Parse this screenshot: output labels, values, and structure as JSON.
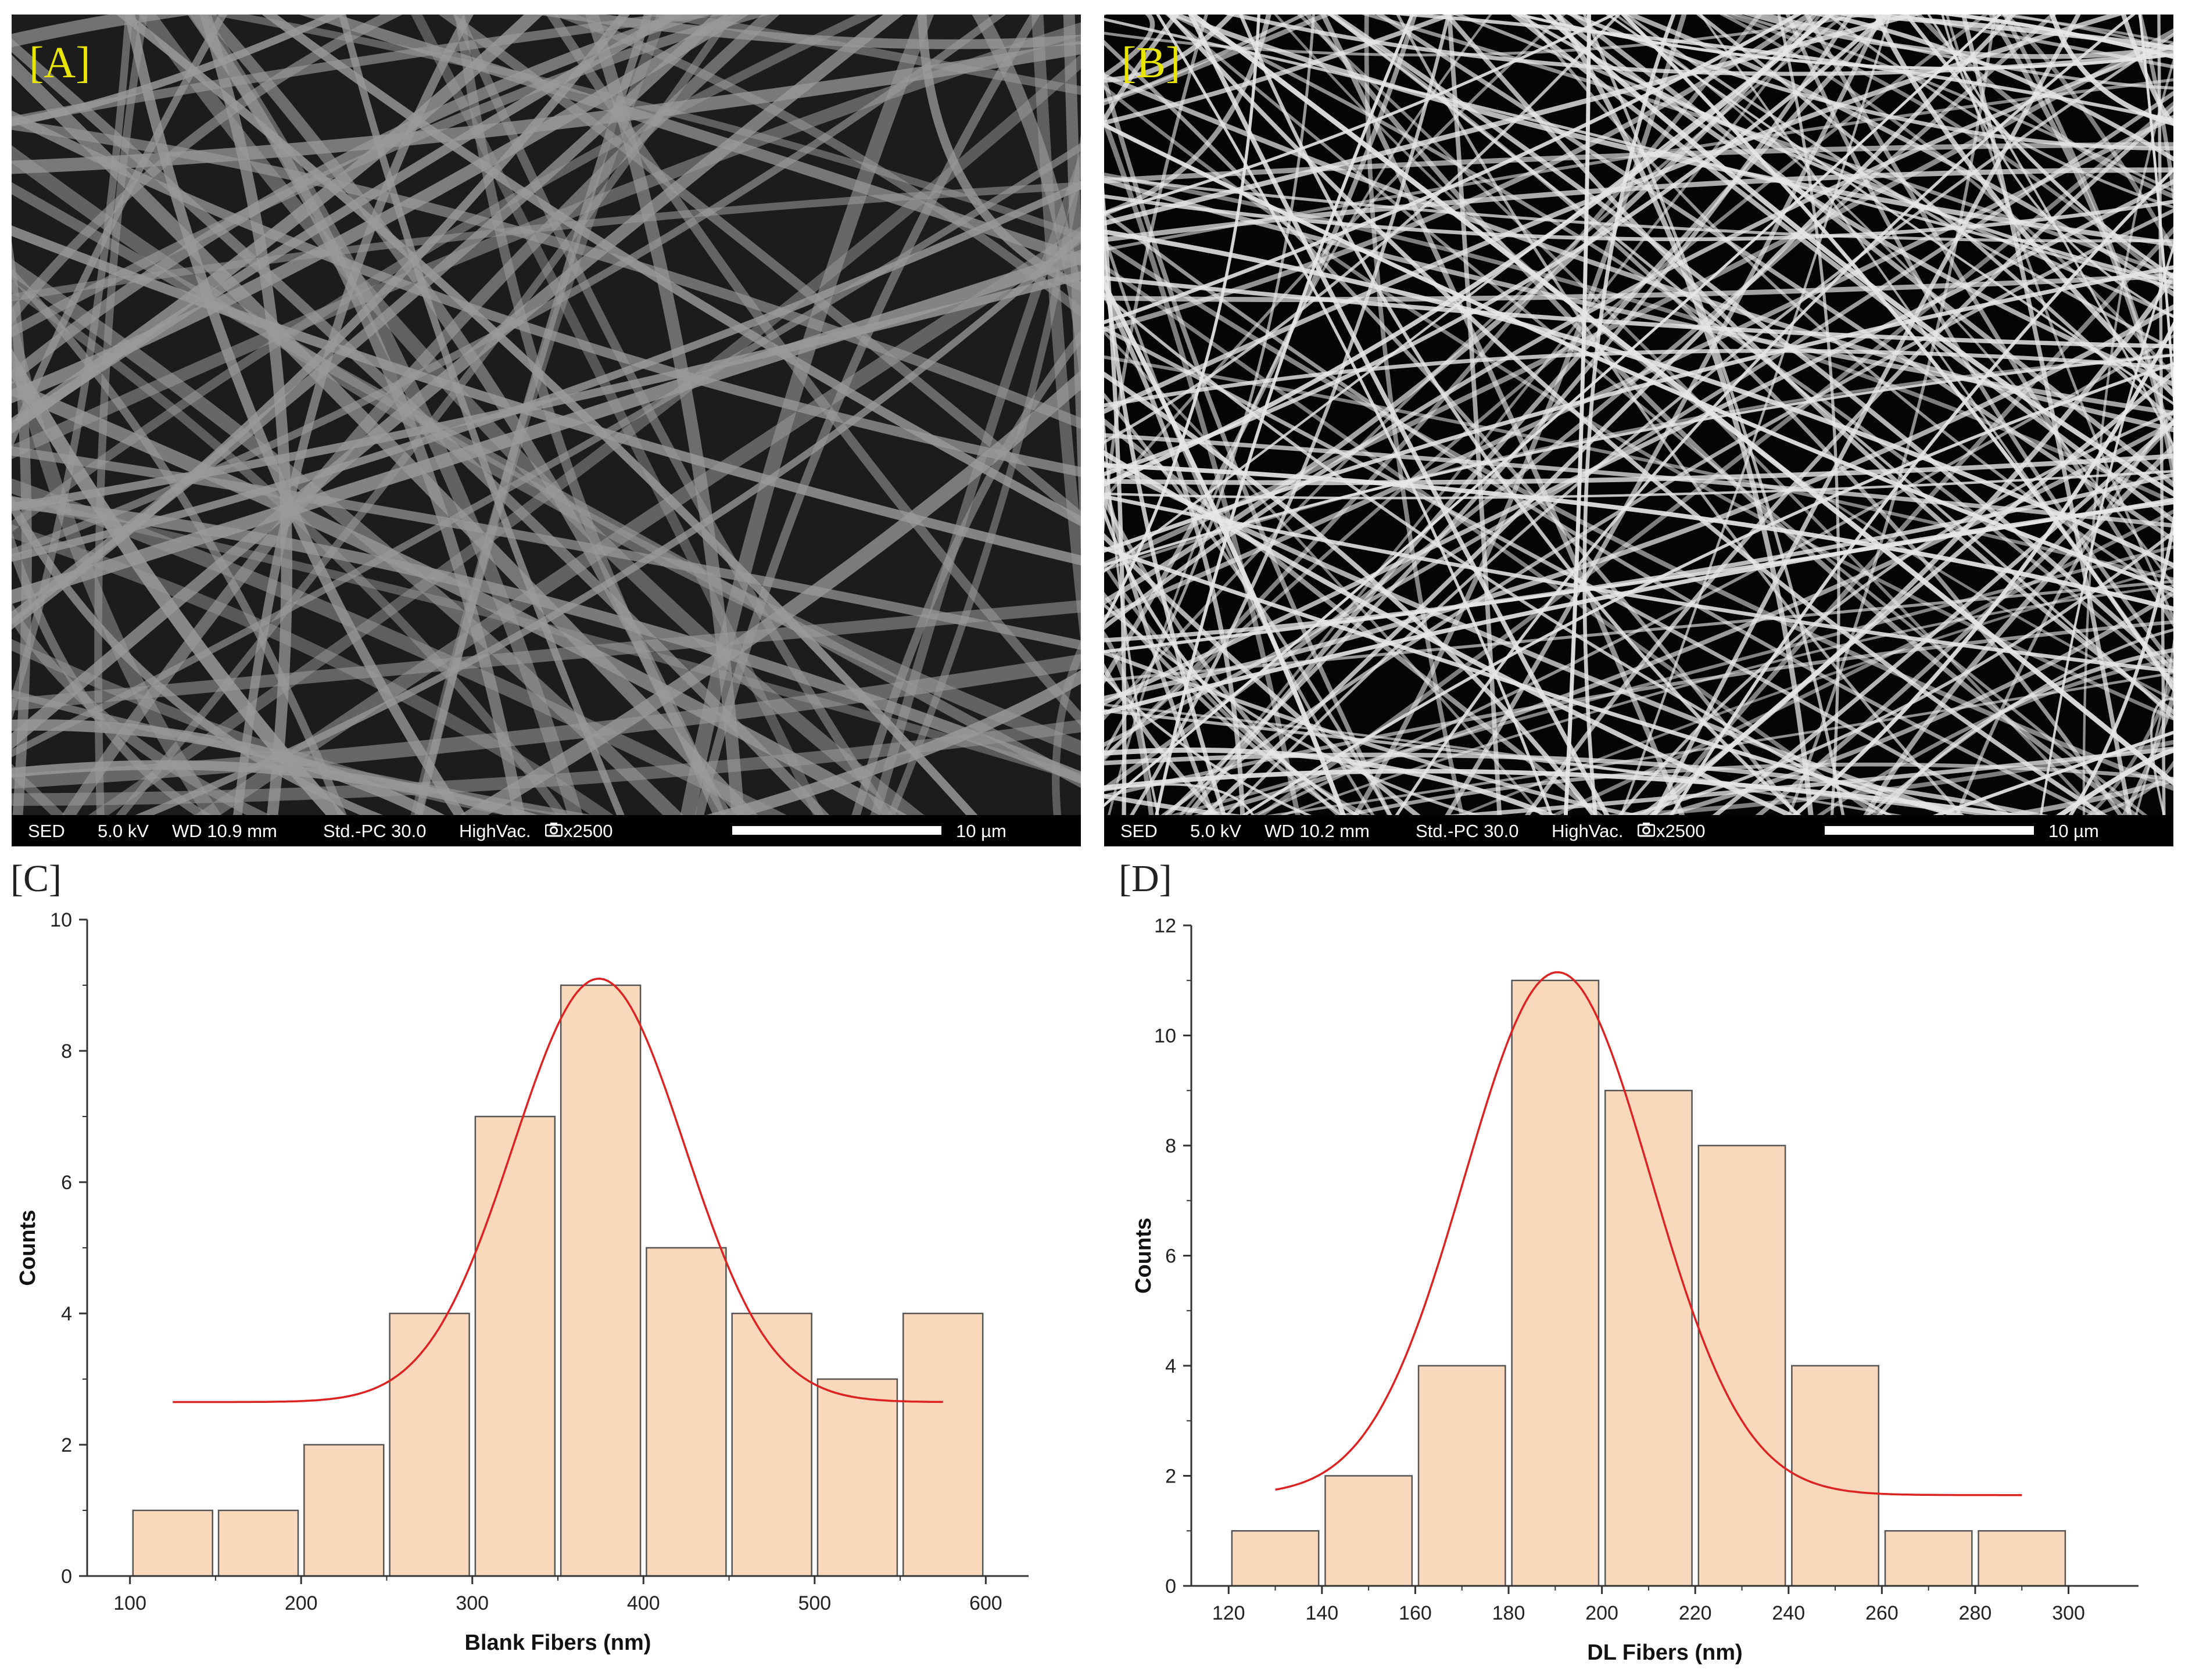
{
  "panels": {
    "A": {
      "label": "[A]",
      "bar": {
        "detector": "SED",
        "kv": "5.0 kV",
        "wd": "WD 10.9 mm",
        "mode": "Std.-PC 30.0",
        "vac": "HighVac.",
        "mag": "x2500",
        "scale": "10 µm"
      },
      "colors": {
        "background": "#1c1c1c",
        "fiber": "#9a9a9a",
        "label": "#e8e600"
      }
    },
    "B": {
      "label": "[B]",
      "bar": {
        "detector": "SED",
        "kv": "5.0 kV",
        "wd": "WD 10.2 mm",
        "mode": "Std.-PC 30.0",
        "vac": "HighVac.",
        "mag": "x2500",
        "scale": "10 µm"
      },
      "colors": {
        "background": "#050505",
        "fiber": "#e6e6e6",
        "label": "#e8e600"
      }
    },
    "C": {
      "label": "[C]"
    },
    "D": {
      "label": "[D]"
    }
  },
  "chart_data": [
    {
      "type": "bar",
      "panel": "C",
      "xlabel": "Blank Fibers (nm)",
      "ylabel": "Counts",
      "xlim": [
        75,
        625
      ],
      "ylim": [
        0,
        10
      ],
      "xticks": [
        100,
        200,
        300,
        400,
        500,
        600
      ],
      "yticks": [
        0,
        2,
        4,
        6,
        8,
        10
      ],
      "bin_edges": [
        100,
        150,
        200,
        250,
        300,
        350,
        400,
        450,
        500,
        550,
        600
      ],
      "values": [
        1,
        1,
        2,
        4,
        7,
        9,
        5,
        4,
        3,
        4
      ],
      "fit": {
        "type": "gaussian",
        "baseline": 2.65,
        "amplitude": 6.45,
        "center": 374,
        "sigma": 50,
        "x_range": [
          125,
          575
        ],
        "color": "#dd2222"
      },
      "bar_color": "#f9d8bc",
      "grid": false
    },
    {
      "type": "bar",
      "panel": "D",
      "xlabel": "DL Fibers (nm)",
      "ylabel": "Counts",
      "xlim": [
        112,
        315
      ],
      "ylim": [
        0,
        12
      ],
      "xticks": [
        120,
        140,
        160,
        180,
        200,
        220,
        240,
        260,
        280,
        300
      ],
      "yticks": [
        0,
        2,
        4,
        6,
        8,
        10,
        12
      ],
      "bin_edges": [
        120,
        140,
        160,
        180,
        200,
        220,
        240,
        260,
        280,
        300
      ],
      "values": [
        1,
        2,
        4,
        11,
        9,
        8,
        4,
        1,
        1
      ],
      "fit": {
        "type": "gaussian",
        "baseline": 1.65,
        "amplitude": 9.5,
        "center": 190.5,
        "sigma": 20,
        "x_range": [
          130,
          290
        ],
        "color": "#dd2222"
      },
      "bar_color": "#f9d8bc",
      "grid": false
    }
  ]
}
